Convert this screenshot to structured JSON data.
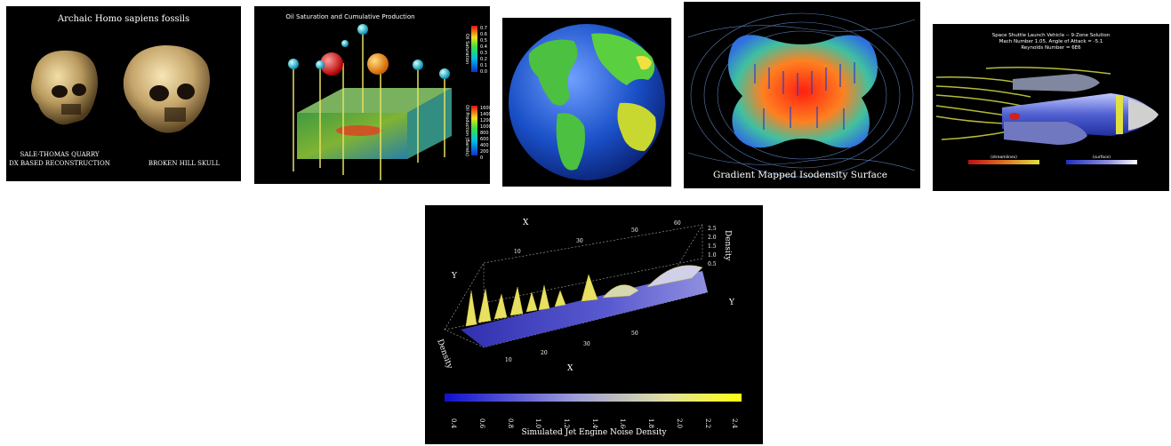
{
  "fossils": {
    "title": "Archaic Homo sapiens fossils",
    "caption_left_1": "SALE-THOMAS QUARRY",
    "caption_left_2": "DX BASED RECONSTRUCTION",
    "caption_right": "BROKEN HILL SKULL"
  },
  "oil": {
    "title": "Oil Saturation and Cumulative Production",
    "colorbar1_label": "Oil Saturation",
    "colorbar1_ticks": [
      "0.7",
      "0.6",
      "0.5",
      "0.4",
      "0.3",
      "0.2",
      "0.1",
      "0.0"
    ],
    "colorbar2_label": "Oil Production (Barrels)",
    "colorbar2_ticks": [
      "1600",
      "1400",
      "1200",
      "1000",
      "800",
      "600",
      "400",
      "200",
      "0"
    ]
  },
  "isodensity": {
    "caption": "Gradient Mapped Isodensity Surface"
  },
  "shuttle": {
    "title_1": "Space Shuttle Launch Vehicle -- 9-Zone Solution",
    "title_2": "Mach Number 1.05, Angle of Attack = -5.1",
    "title_3": "Reynolds Number = 6E6",
    "legend_left_label": "(streamlines)",
    "legend_right_label": "(surface)"
  },
  "jet": {
    "caption": "Simulated Jet Engine Noise Density",
    "axis_x_top": "X",
    "axis_x_bottom": "X",
    "axis_y_left": "Y",
    "axis_y_right": "Y",
    "axis_density_top": "Density",
    "axis_density_bottom": "Density",
    "x_ticks_top": [
      "10",
      "30",
      "50",
      "60"
    ],
    "x_ticks_bottom": [
      "10",
      "20",
      "30",
      "50"
    ],
    "density_ticks": [
      "2.5",
      "2.0",
      "1.5",
      "1.0",
      "0.5"
    ],
    "colorbar_ticks": [
      "0.4",
      "0.6",
      "0.8",
      "1.0",
      "1.2",
      "1.4",
      "1.6",
      "1.8",
      "2.0",
      "2.2",
      "2.4"
    ]
  }
}
